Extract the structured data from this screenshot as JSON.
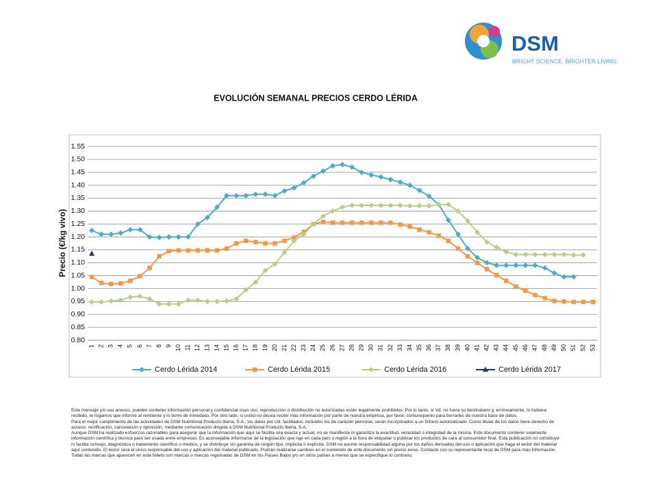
{
  "logo": {
    "name": "DSM",
    "tagline": "BRIGHT SCIENCE. BRIGHTER LIVING."
  },
  "chart_data": {
    "type": "line",
    "title": "EVOLUCIÓN SEMANAL PRECIOS CERDO LÉRIDA",
    "y_label": "Precio (€/kg vivo)",
    "categories": [
      "1",
      "2",
      "3",
      "4",
      "5",
      "6",
      "7",
      "8",
      "9",
      "10",
      "11",
      "12",
      "13",
      "14",
      "15",
      "16",
      "17",
      "18",
      "19",
      "20",
      "21",
      "22",
      "23",
      "24",
      "25",
      "26",
      "27",
      "28",
      "29",
      "30",
      "31",
      "32",
      "33",
      "34",
      "35",
      "36",
      "37",
      "38",
      "39",
      "40",
      "41",
      "42",
      "43",
      "44",
      "45",
      "46",
      "47",
      "48",
      "49",
      "50",
      "51",
      "52",
      "53"
    ],
    "series": [
      {
        "name": "Cerdo Lérida 2014",
        "color": "#4bacc6",
        "marker": "diamond",
        "values": [
          1.225,
          1.21,
          1.21,
          1.215,
          1.228,
          1.228,
          1.2,
          1.198,
          1.2,
          1.2,
          1.2,
          1.25,
          1.275,
          1.315,
          1.36,
          1.36,
          1.36,
          1.365,
          1.365,
          1.36,
          1.378,
          1.39,
          1.41,
          1.435,
          1.455,
          1.475,
          1.48,
          1.47,
          1.45,
          1.44,
          1.432,
          1.422,
          1.412,
          1.4,
          1.38,
          1.358,
          1.325,
          1.265,
          1.21,
          1.155,
          1.12,
          1.1,
          1.09,
          1.09,
          1.09,
          1.09,
          1.09,
          1.08,
          1.06,
          1.045,
          1.045,
          null,
          null
        ]
      },
      {
        "name": "Cerdo Lérida 2015",
        "color": "#f79646",
        "marker": "square",
        "values": [
          1.045,
          1.022,
          1.018,
          1.02,
          1.03,
          1.048,
          1.08,
          1.125,
          1.145,
          1.148,
          1.148,
          1.148,
          1.148,
          1.148,
          1.155,
          1.175,
          1.185,
          1.18,
          1.175,
          1.175,
          1.185,
          1.198,
          1.22,
          1.25,
          1.258,
          1.255,
          1.255,
          1.255,
          1.255,
          1.255,
          1.255,
          1.255,
          1.248,
          1.24,
          1.228,
          1.218,
          1.205,
          1.185,
          1.155,
          1.125,
          1.1,
          1.075,
          1.052,
          1.03,
          1.008,
          0.992,
          0.975,
          0.963,
          0.952,
          0.95,
          0.948,
          0.948,
          0.948
        ]
      },
      {
        "name": "Cerdo Lérida 2016",
        "color": "#b5d088",
        "marker": "diamond",
        "values": [
          0.948,
          0.948,
          0.952,
          0.955,
          0.967,
          0.97,
          0.96,
          0.94,
          0.94,
          0.94,
          0.955,
          0.955,
          0.95,
          0.95,
          0.952,
          0.96,
          0.995,
          1.025,
          1.07,
          1.095,
          1.14,
          1.185,
          1.21,
          1.25,
          1.28,
          1.3,
          1.315,
          1.322,
          1.322,
          1.322,
          1.322,
          1.322,
          1.322,
          1.32,
          1.32,
          1.32,
          1.325,
          1.325,
          1.3,
          1.262,
          1.218,
          1.18,
          1.16,
          1.142,
          1.132,
          1.132,
          1.132,
          1.132,
          1.132,
          1.132,
          1.13,
          1.13,
          null
        ]
      },
      {
        "name": "Cerdo Lérida 2017",
        "color": "#1f3864",
        "marker": "triangle",
        "values": [
          1.135,
          null,
          null,
          null,
          null,
          null,
          null,
          null,
          null,
          null,
          null,
          null,
          null,
          null,
          null,
          null,
          null,
          null,
          null,
          null,
          null,
          null,
          null,
          null,
          null,
          null,
          null,
          null,
          null,
          null,
          null,
          null,
          null,
          null,
          null,
          null,
          null,
          null,
          null,
          null,
          null,
          null,
          null,
          null,
          null,
          null,
          null,
          null,
          null,
          null,
          null,
          null,
          null
        ]
      }
    ],
    "ylim": [
      0.8,
      1.55
    ],
    "yticks": [
      {
        "value": 0.8,
        "label": "0.80"
      },
      {
        "value": 0.85,
        "label": "0.85"
      },
      {
        "value": 0.9,
        "label": "0.90"
      },
      {
        "value": 0.95,
        "label": "0.95"
      },
      {
        "value": 1.0,
        "label": "1.00"
      },
      {
        "value": 1.05,
        "label": "1.05"
      },
      {
        "value": 1.1,
        "label": "1.10"
      },
      {
        "value": 1.15,
        "label": "1.15"
      },
      {
        "value": 1.2,
        "label": "1.20"
      },
      {
        "value": 1.25,
        "label": "1.25"
      },
      {
        "value": 1.3,
        "label": "1.30"
      },
      {
        "value": 1.35,
        "label": "1.35"
      },
      {
        "value": 1.4,
        "label": "1.40"
      },
      {
        "value": 1.45,
        "label": "1.45"
      },
      {
        "value": 1.5,
        "label": "1.50"
      },
      {
        "value": 1.55,
        "label": "1.55"
      }
    ],
    "grid": true,
    "legend": "bottom"
  },
  "disclaimer": [
    "Este mensaje y/o sus anexos, pueden contener información personal y confidencial cuyo uso, reproducción o distribución no autorizadas están legalmente prohibidos. Por lo tanto, si Vd. no fuera su destinatario y, erróneamente, lo hubiera recibido, le rogamos que informe al remitente y lo borre de inmediato. Por otro lado, si usted no desea recibir más información por parte de nuestra empresa, por favor, comuníquenlo para borrarles de nuestra base de datos.",
    "Para el mejor cumplimiento de las actividades de DSM Nutritional Products Iberia, S.A., los datos por Ud. facilitados, incluidos los de carácter personal, serán incorporados a un fichero automatizado. Como titular de los datos tiene derecho de acceso, rectificación, cancelación y oposición, mediante comunicación dirigida a DSM Nutritional Products Iberia, S.A.",
    "Aunque DSM ha realizado esfuerzos razonables para asegurar que la información que aquí se facilita sea exacta y actual, no se manifiesta ni garantiza la exactitud, veracidad o integridad de la misma. Este documento contiene solamente información científica y técnica para ser usada entre empresas. Es aconsejable informarse de la legislación que rige en cada país o región a la hora de etiquetar o publicar los productos de cara al consumidor final. Esta publicación no constituye ni facilita consejo, diagnóstico o tratamiento científico o médico, y se distribuye sin garantía de ningún tipo, implícita o explícita. DSM no asume responsabilidad alguna por los daños derivados del uso o aplicación que haga el lector del material aquí contenido. El lector será el único responsable del uso y aplicación del material publicado. Podrán realizarse cambios en el contenido de este documento sin previo aviso. Contacte con  su representante local de DSM para más información. Todas las marcas que aparecen en este folleto son marcas o marcas registradas de DSM en los Países Bajos y/o en otros países a menos que se especifique lo contrario."
  ]
}
